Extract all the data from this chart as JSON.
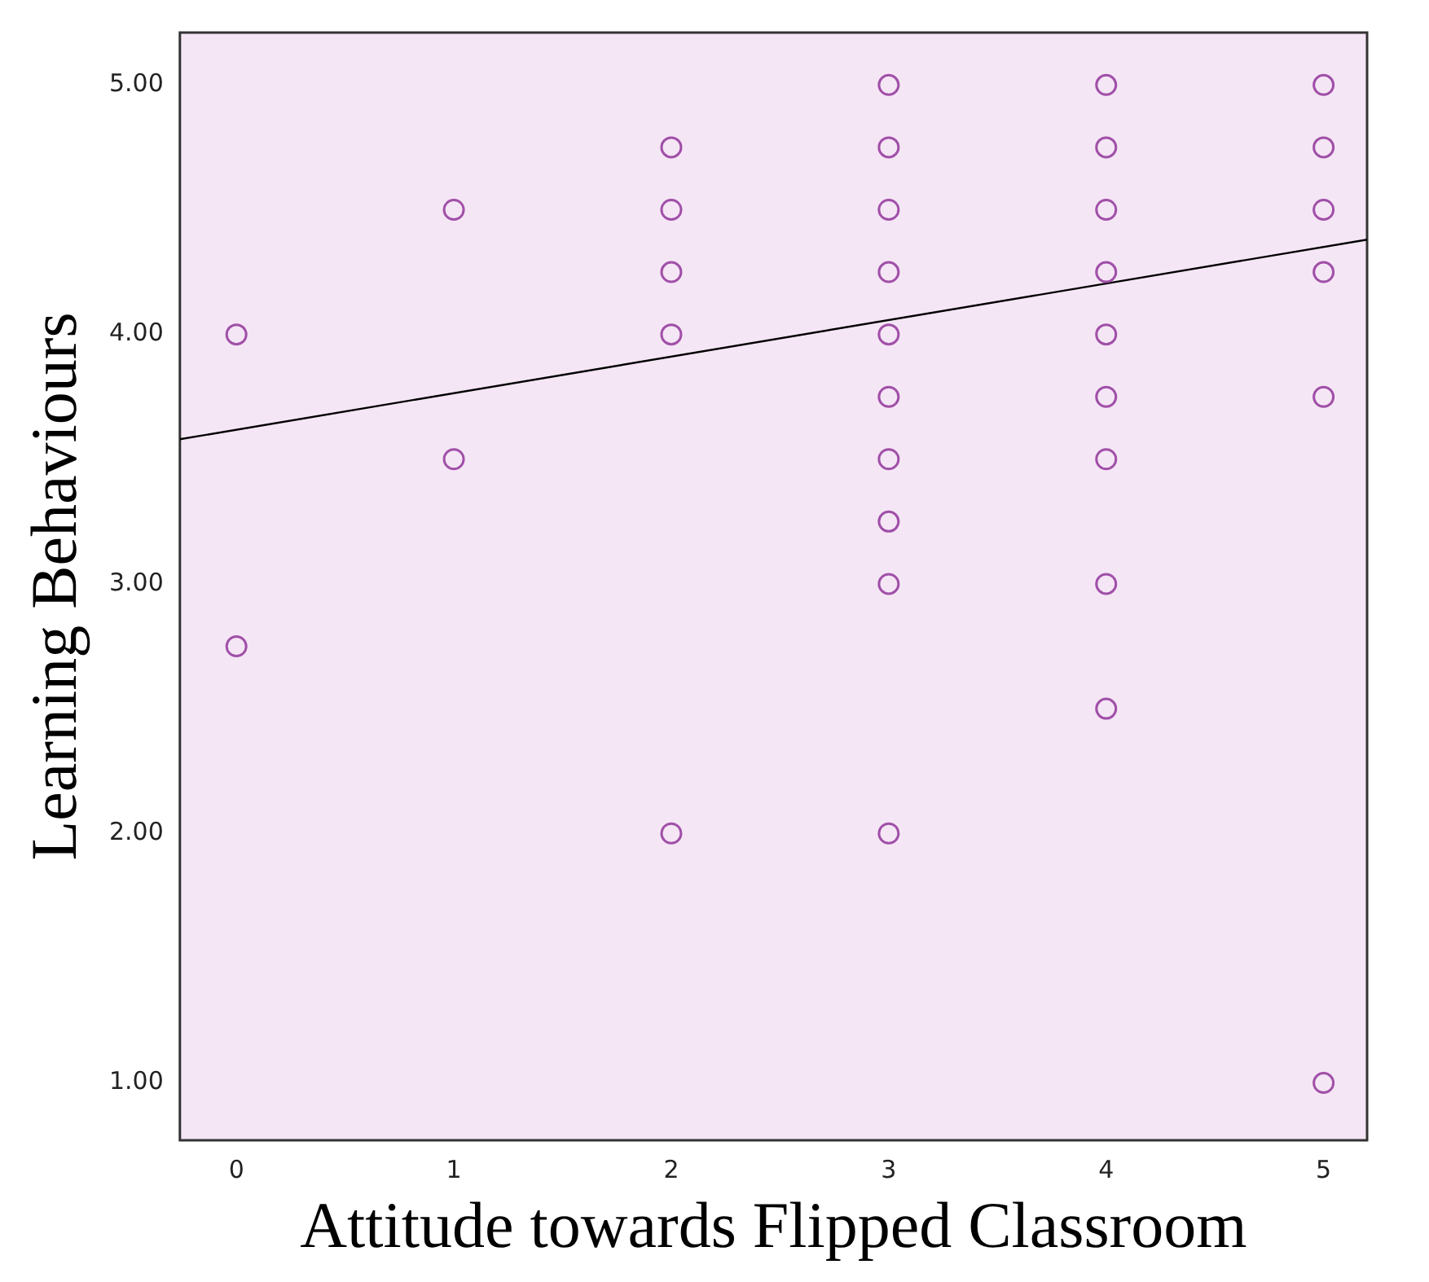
{
  "chart_data": {
    "type": "scatter",
    "xlabel": "Attitude towards Flipped Classroom",
    "ylabel": "Learning Behaviours",
    "xlim": [
      -0.26,
      5.2
    ],
    "xticks": [
      0,
      1,
      2,
      3,
      4,
      5
    ],
    "ylim": [
      0.77,
      5.21
    ],
    "yticks": [
      {
        "value": 1,
        "label": "1.00"
      },
      {
        "value": 2,
        "label": "2.00"
      },
      {
        "value": 3,
        "label": "3.00"
      },
      {
        "value": 4,
        "label": "4.00"
      },
      {
        "value": 5,
        "label": "5.00"
      }
    ],
    "grid": false,
    "legend": false,
    "marker": "circle",
    "series": [
      {
        "color": "#a050a8",
        "x": [
          0,
          0,
          1,
          1,
          2,
          2,
          2,
          2,
          2,
          3,
          3,
          3,
          3,
          3,
          3,
          3,
          3,
          3,
          3,
          4,
          4,
          4,
          4,
          4,
          4,
          4,
          4,
          4,
          5,
          5,
          5,
          5,
          5,
          5
        ],
        "values": [
          4.0,
          2.75,
          4.5,
          3.5,
          4.75,
          4.5,
          4.25,
          4.0,
          2.0,
          5.0,
          4.75,
          4.5,
          4.25,
          4.0,
          3.75,
          3.5,
          3.25,
          3.0,
          2.0,
          5.0,
          4.75,
          4.5,
          4.25,
          4.0,
          3.75,
          3.5,
          3.0,
          2.5,
          5.0,
          4.75,
          4.5,
          4.25,
          3.75,
          1.0
        ]
      },
      {
        "type": "line",
        "color": "#000000",
        "marker": "none",
        "x": [
          -0.26,
          5.2
        ],
        "values": [
          3.58,
          4.38
        ]
      }
    ]
  }
}
